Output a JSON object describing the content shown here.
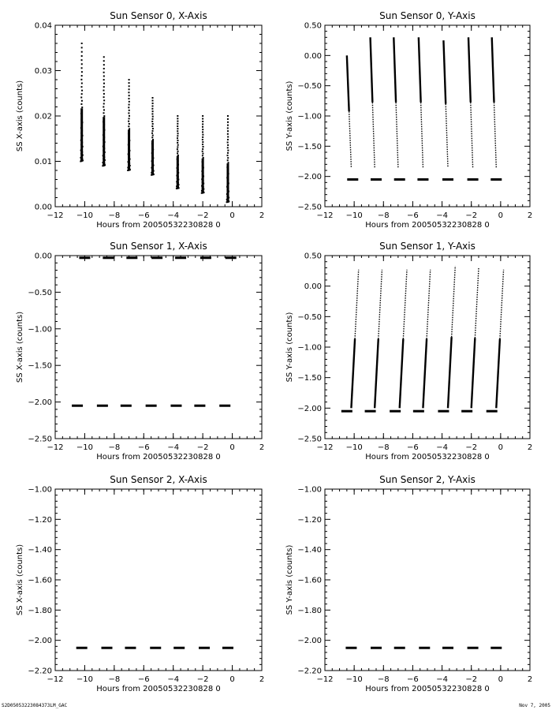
{
  "footer": {
    "left": "S2D05053223084373LM_GAC",
    "right": "Nov  7, 2005"
  },
  "chart_data": [
    {
      "type": "scatter",
      "title": "Sun Sensor 0, X-Axis",
      "xlabel": "Hours from 20050532230828 0",
      "ylabel": "SS X-axis (counts)",
      "xlim": [
        -12,
        2
      ],
      "ylim": [
        0,
        0.04
      ],
      "xticks": [
        -12,
        -10,
        -8,
        -6,
        -4,
        -2,
        0,
        2
      ],
      "yticks": [
        0,
        0.01,
        0.02,
        0.03,
        0.04
      ],
      "ytick_labels": [
        "0.00",
        "0.01",
        "0.02",
        "0.03",
        "0.04"
      ],
      "series": [
        {
          "kind": "spikes",
          "segments": [
            {
              "x": -10.2,
              "y_from": 0.01,
              "y_to": 0.036
            },
            {
              "x": -8.7,
              "y_from": 0.009,
              "y_to": 0.033
            },
            {
              "x": -7.0,
              "y_from": 0.008,
              "y_to": 0.028
            },
            {
              "x": -5.4,
              "y_from": 0.007,
              "y_to": 0.024
            },
            {
              "x": -3.7,
              "y_from": 0.004,
              "y_to": 0.02
            },
            {
              "x": -2.0,
              "y_from": 0.003,
              "y_to": 0.02
            },
            {
              "x": -0.3,
              "y_from": 0.001,
              "y_to": 0.02
            }
          ]
        }
      ]
    },
    {
      "type": "scatter",
      "title": "Sun Sensor 0, Y-Axis",
      "xlabel": "Hours from 20050532230828 0",
      "ylabel": "SS Y-axis (counts)",
      "xlim": [
        -12,
        2
      ],
      "ylim": [
        -2.5,
        0.5
      ],
      "xticks": [
        -12,
        -10,
        -8,
        -6,
        -4,
        -2,
        0,
        2
      ],
      "yticks": [
        -2.5,
        -2.0,
        -1.5,
        -1.0,
        -0.5,
        0.0,
        0.5
      ],
      "ytick_labels": [
        "-2.50",
        "-2.00",
        "-1.50",
        "-1.00",
        "-0.50",
        "0.00",
        "0.50"
      ],
      "series": [
        {
          "kind": "lines",
          "segments": [
            {
              "x1": -10.5,
              "y1": 0.0,
              "x2": -10.2,
              "y2": -1.85
            },
            {
              "x1": -8.9,
              "y1": 0.3,
              "x2": -8.6,
              "y2": -1.85
            },
            {
              "x1": -7.3,
              "y1": 0.3,
              "x2": -7.0,
              "y2": -1.85
            },
            {
              "x1": -5.6,
              "y1": 0.3,
              "x2": -5.3,
              "y2": -1.85
            },
            {
              "x1": -3.9,
              "y1": 0.25,
              "x2": -3.6,
              "y2": -1.85
            },
            {
              "x1": -2.2,
              "y1": 0.3,
              "x2": -1.9,
              "y2": -1.85
            },
            {
              "x1": -0.6,
              "y1": 0.3,
              "x2": -0.3,
              "y2": -1.85
            }
          ]
        },
        {
          "kind": "dashes",
          "y": -2.05,
          "centers": [
            -10.1,
            -8.5,
            -6.9,
            -5.3,
            -3.6,
            -1.9,
            -0.3
          ]
        }
      ]
    },
    {
      "type": "scatter",
      "title": "Sun Sensor 1, X-Axis",
      "xlabel": "Hours from 20050532230828 0",
      "ylabel": "SS X-axis (counts)",
      "xlim": [
        -12,
        2
      ],
      "ylim": [
        -2.5,
        0.0
      ],
      "xticks": [
        -12,
        -10,
        -8,
        -6,
        -4,
        -2,
        0,
        2
      ],
      "yticks": [
        -2.5,
        -2.0,
        -1.5,
        -1.0,
        -0.5,
        0.0
      ],
      "ytick_labels": [
        "-2.50",
        "-2.00",
        "-1.50",
        "-1.00",
        "-0.50",
        "0.00"
      ],
      "series": [
        {
          "kind": "dashes",
          "y": -0.03,
          "centers": [
            -10.0,
            -8.4,
            -6.8,
            -5.1,
            -3.5,
            -1.8,
            -0.1
          ]
        },
        {
          "kind": "dashes",
          "y": -2.05,
          "centers": [
            -10.5,
            -8.8,
            -7.2,
            -5.5,
            -3.8,
            -2.2,
            -0.5
          ]
        }
      ]
    },
    {
      "type": "scatter",
      "title": "Sun Sensor 1, Y-Axis",
      "xlabel": "Hours from 20050532230828 0",
      "ylabel": "SS Y-axis (counts)",
      "xlim": [
        -12,
        2
      ],
      "ylim": [
        -2.5,
        0.5
      ],
      "xticks": [
        -12,
        -10,
        -8,
        -6,
        -4,
        -2,
        0,
        2
      ],
      "yticks": [
        -2.5,
        -2.0,
        -1.5,
        -1.0,
        -0.5,
        0.0,
        0.5
      ],
      "ytick_labels": [
        "-2.50",
        "-2.00",
        "-1.50",
        "-1.00",
        "-0.50",
        "0.00",
        "0.50"
      ],
      "series": [
        {
          "kind": "lines",
          "segments": [
            {
              "x1": -10.2,
              "y1": -2.0,
              "x2": -9.7,
              "y2": 0.27
            },
            {
              "x1": -8.6,
              "y1": -2.0,
              "x2": -8.1,
              "y2": 0.27
            },
            {
              "x1": -6.9,
              "y1": -2.0,
              "x2": -6.4,
              "y2": 0.27
            },
            {
              "x1": -5.3,
              "y1": -2.0,
              "x2": -4.8,
              "y2": 0.27
            },
            {
              "x1": -3.6,
              "y1": -2.0,
              "x2": -3.1,
              "y2": 0.33
            },
            {
              "x1": -2.0,
              "y1": -2.0,
              "x2": -1.5,
              "y2": 0.3
            },
            {
              "x1": -0.3,
              "y1": -2.0,
              "x2": 0.2,
              "y2": 0.27
            }
          ]
        },
        {
          "kind": "dashes",
          "y": -2.05,
          "centers": [
            -10.5,
            -8.9,
            -7.2,
            -5.6,
            -3.9,
            -2.3,
            -0.6
          ]
        }
      ]
    },
    {
      "type": "scatter",
      "title": "Sun Sensor 2, X-Axis",
      "xlabel": "Hours from 20050532230828 0",
      "ylabel": "SS X-axis (counts)",
      "xlim": [
        -12,
        2
      ],
      "ylim": [
        -2.2,
        -1.0
      ],
      "xticks": [
        -12,
        -10,
        -8,
        -6,
        -4,
        -2,
        0,
        2
      ],
      "yticks": [
        -2.2,
        -2.0,
        -1.8,
        -1.6,
        -1.4,
        -1.2,
        -1.0
      ],
      "ytick_labels": [
        "-2.20",
        "-2.00",
        "-1.80",
        "-1.60",
        "-1.40",
        "-1.20",
        "-1.00"
      ],
      "series": [
        {
          "kind": "dashes",
          "y": -2.05,
          "centers": [
            -10.2,
            -8.5,
            -6.9,
            -5.2,
            -3.6,
            -1.9,
            -0.3
          ]
        }
      ]
    },
    {
      "type": "scatter",
      "title": "Sun Sensor 2, Y-Axis",
      "xlabel": "Hours from 20050532230828 0",
      "ylabel": "SS Y-axis (counts)",
      "xlim": [
        -12,
        2
      ],
      "ylim": [
        -2.2,
        -1.0
      ],
      "xticks": [
        -12,
        -10,
        -8,
        -6,
        -4,
        -2,
        0,
        2
      ],
      "yticks": [
        -2.2,
        -2.0,
        -1.8,
        -1.6,
        -1.4,
        -1.2,
        -1.0
      ],
      "ytick_labels": [
        "-2.20",
        "-2.00",
        "-1.80",
        "-1.60",
        "-1.40",
        "-1.20",
        "-1.00"
      ],
      "series": [
        {
          "kind": "dashes",
          "y": -2.05,
          "centers": [
            -10.2,
            -8.5,
            -6.9,
            -5.2,
            -3.6,
            -1.9,
            -0.3
          ]
        }
      ]
    }
  ]
}
